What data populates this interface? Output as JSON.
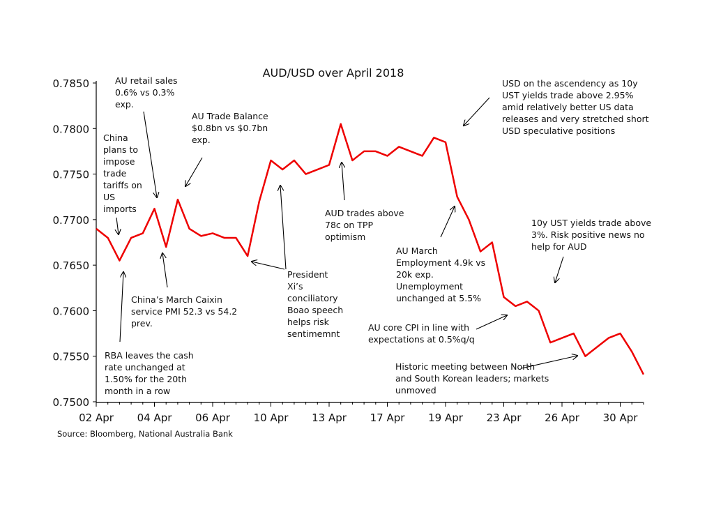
{
  "chart_data": {
    "type": "line",
    "title": "AUD/USD over April 2018",
    "source": "Source: Bloomberg, National Australia Bank",
    "categories": [
      "02 Apr",
      null,
      null,
      null,
      null,
      "04 Apr",
      null,
      null,
      null,
      null,
      "06 Apr",
      null,
      null,
      null,
      null,
      "10 Apr",
      null,
      null,
      null,
      null,
      "13 Apr",
      null,
      null,
      null,
      null,
      "17 Apr",
      null,
      null,
      null,
      null,
      "19 Apr",
      null,
      null,
      null,
      null,
      "23 Apr",
      null,
      null,
      null,
      null,
      "26 Apr",
      null,
      null,
      null,
      null,
      "30 Apr",
      null,
      null
    ],
    "series": [
      {
        "name": "AUD/USD",
        "color": "#ee0000",
        "values": [
          0.769,
          0.768,
          0.7655,
          0.768,
          0.7685,
          0.7712,
          0.767,
          0.7722,
          0.769,
          0.7682,
          0.7685,
          0.768,
          0.768,
          0.766,
          0.772,
          0.7765,
          0.7755,
          0.7765,
          0.775,
          0.7755,
          0.776,
          0.7805,
          0.7765,
          0.7775,
          0.7775,
          0.777,
          0.778,
          0.7775,
          0.777,
          0.779,
          0.7785,
          0.7725,
          0.77,
          0.7665,
          0.7675,
          0.7615,
          0.7605,
          0.761,
          0.76,
          0.7565,
          0.757,
          0.7575,
          0.755,
          0.756,
          0.757,
          0.7575,
          0.7555,
          0.753
        ]
      }
    ],
    "ylim": [
      0.75,
      0.785
    ],
    "yticks": [
      {
        "value": 0.75,
        "label": "0.7500"
      },
      {
        "value": 0.755,
        "label": "0.7550"
      },
      {
        "value": 0.76,
        "label": "0.7600"
      },
      {
        "value": 0.765,
        "label": "0.7650"
      },
      {
        "value": 0.77,
        "label": "0.7700"
      },
      {
        "value": 0.775,
        "label": "0.7750"
      },
      {
        "value": 0.78,
        "label": "0.7800"
      },
      {
        "value": 0.785,
        "label": "0.7850"
      }
    ],
    "grid": false,
    "annotations": [
      [
        "AU retail sales",
        "0.6% vs 0.3%",
        "exp."
      ],
      [
        "AU Trade Balance",
        "$0.8bn vs $0.7bn",
        "exp."
      ],
      [
        "China",
        "plans to",
        "impose",
        "trade",
        "tariffs on",
        "US",
        "imports"
      ],
      [
        "China’s March Caixin",
        "service PMI 52.3 vs 54.2",
        "prev."
      ],
      [
        "RBA leaves the cash",
        "rate unchanged at",
        "1.50% for the 20th",
        "month in a row"
      ],
      [
        "President",
        "Xi’s",
        "conciliatory",
        "Boao speech",
        "helps risk",
        "sentimemnt"
      ],
      [
        "AUD trades above",
        "78c on TPP",
        "optimism"
      ],
      [
        "USD on the ascendency as 10y",
        "UST yields trade above 2.95%",
        "amid  relatively better US data",
        "releases and very stretched short",
        "USD speculative positions"
      ],
      [
        "AU March",
        "Employment 4.9k vs",
        "20k exp.",
        "Unemployment",
        "unchanged at 5.5%"
      ],
      [
        "10y UST yields trade above",
        "3%. Risk positive news no",
        "help for AUD"
      ],
      [
        "AU core CPI in line with",
        "expectations at 0.5%q/q"
      ],
      [
        "Historic meeting between North",
        "and South Korean leaders; markets",
        "unmoved"
      ]
    ]
  }
}
